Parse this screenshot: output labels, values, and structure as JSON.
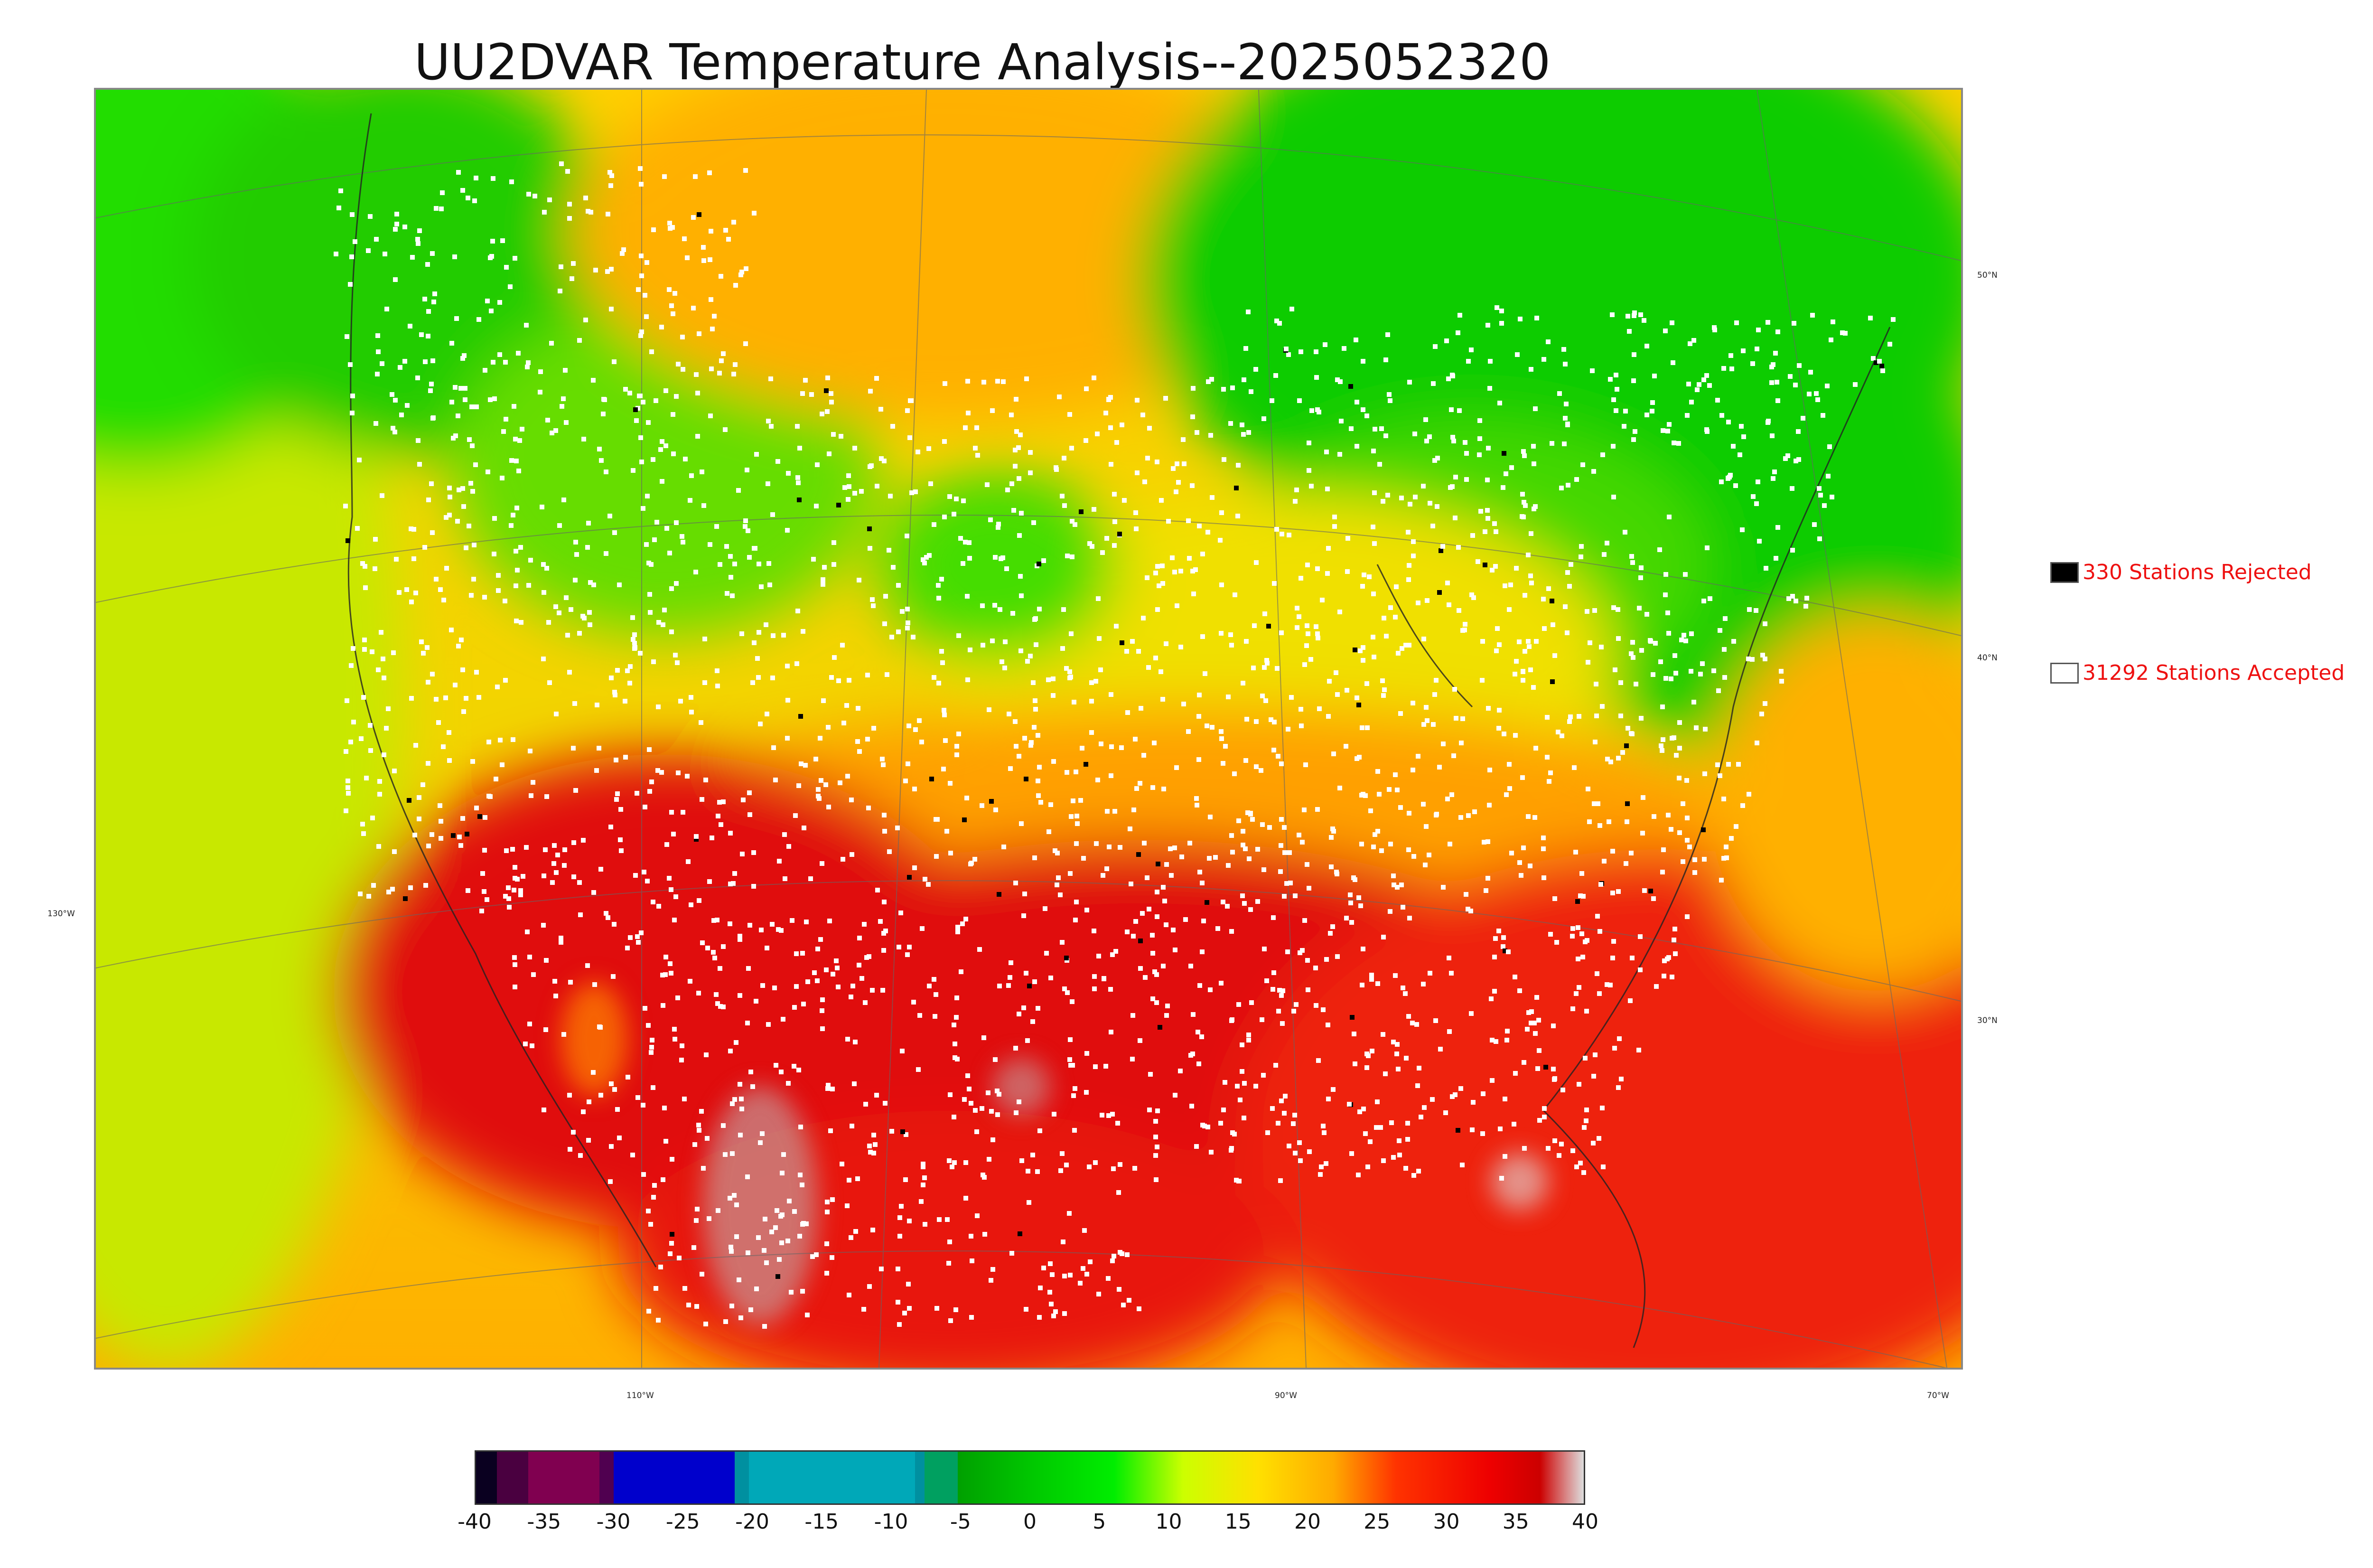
{
  "title": "UU2DVAR Temperature Analysis--2025052320",
  "map": {
    "latitude_labels": [
      "50°N",
      "40°N",
      "30°N"
    ],
    "longitude_labels": [
      "130°W",
      "110°W",
      "90°W",
      "70°W"
    ],
    "temperature_colors": {
      "cold": "#00cc00",
      "mild": "#ccee00",
      "warm": "#ffaa00",
      "hot": "#ee1111",
      "hottest": "#cc0000",
      "peak": "#cccccc"
    }
  },
  "legend": {
    "rejected": {
      "label": "330 Stations Rejected",
      "color": "#000000"
    },
    "accepted": {
      "label": "31292 Stations Accepted",
      "color": "#ffffff"
    }
  },
  "colorbar": {
    "ticks": [
      "-40",
      "-35",
      "-30",
      "-25",
      "-20",
      "-15",
      "-10",
      "-5",
      "0",
      "5",
      "10",
      "15",
      "20",
      "25",
      "30",
      "35",
      "40"
    ],
    "min": -40,
    "max": 40
  }
}
